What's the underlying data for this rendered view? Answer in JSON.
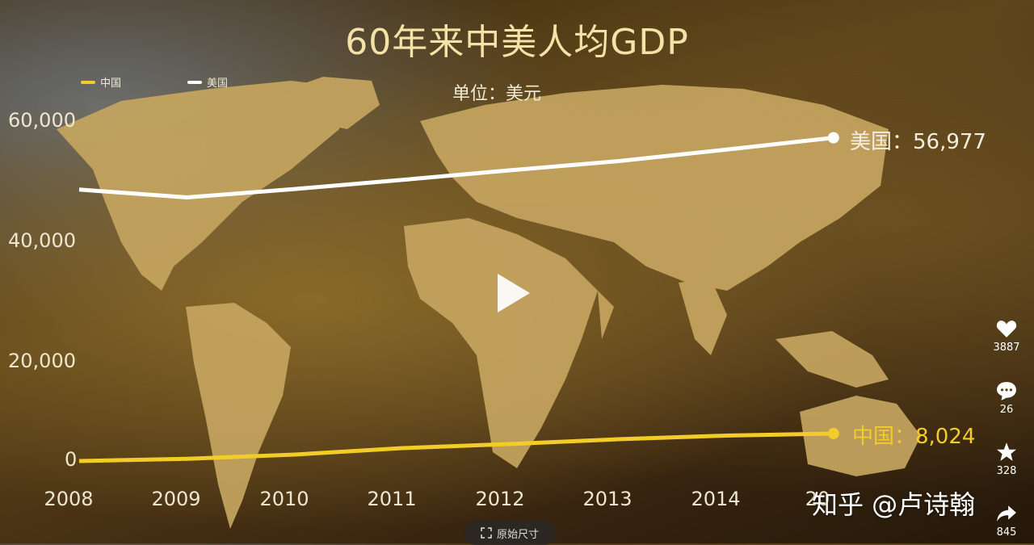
{
  "chart_data": {
    "type": "line",
    "title": "60年来中美人均GDP",
    "unit_label": "单位：美元",
    "categories": [
      "2008",
      "2009",
      "2010",
      "2011",
      "2012",
      "2013",
      "2014",
      "2015"
    ],
    "x_tick_labels": [
      "2008",
      "2009",
      "2010",
      "2011",
      "2012",
      "2013",
      "2014",
      "20"
    ],
    "y_ticks": [
      0,
      20000,
      40000,
      60000
    ],
    "y_tick_labels": [
      "0",
      "20,000",
      "40,000",
      "60,000"
    ],
    "ylim": [
      0,
      60000
    ],
    "series": [
      {
        "name": "中国",
        "color": "#f2cc28",
        "values": [
          3470,
          3840,
          4550,
          5610,
          6300,
          7080,
          7680,
          8024
        ],
        "end_label": "中国：8,024"
      },
      {
        "name": "美国",
        "color": "#ffffff",
        "values": [
          48400,
          47100,
          48500,
          50000,
          51600,
          53100,
          55000,
          56977
        ],
        "end_label": "美国：56,977"
      }
    ],
    "legend": [
      {
        "name": "中国",
        "color": "#f2cc28"
      },
      {
        "name": "美国",
        "color": "#ffffff"
      }
    ]
  },
  "overlay": {
    "watermark": "知乎 @卢诗翰",
    "original_size_button": "原始尺寸",
    "actions": [
      {
        "icon": "heart-icon",
        "count": "3887"
      },
      {
        "icon": "comment-icon",
        "count": "26"
      },
      {
        "icon": "star-icon",
        "count": "328"
      },
      {
        "icon": "share-icon",
        "count": "845"
      }
    ]
  }
}
